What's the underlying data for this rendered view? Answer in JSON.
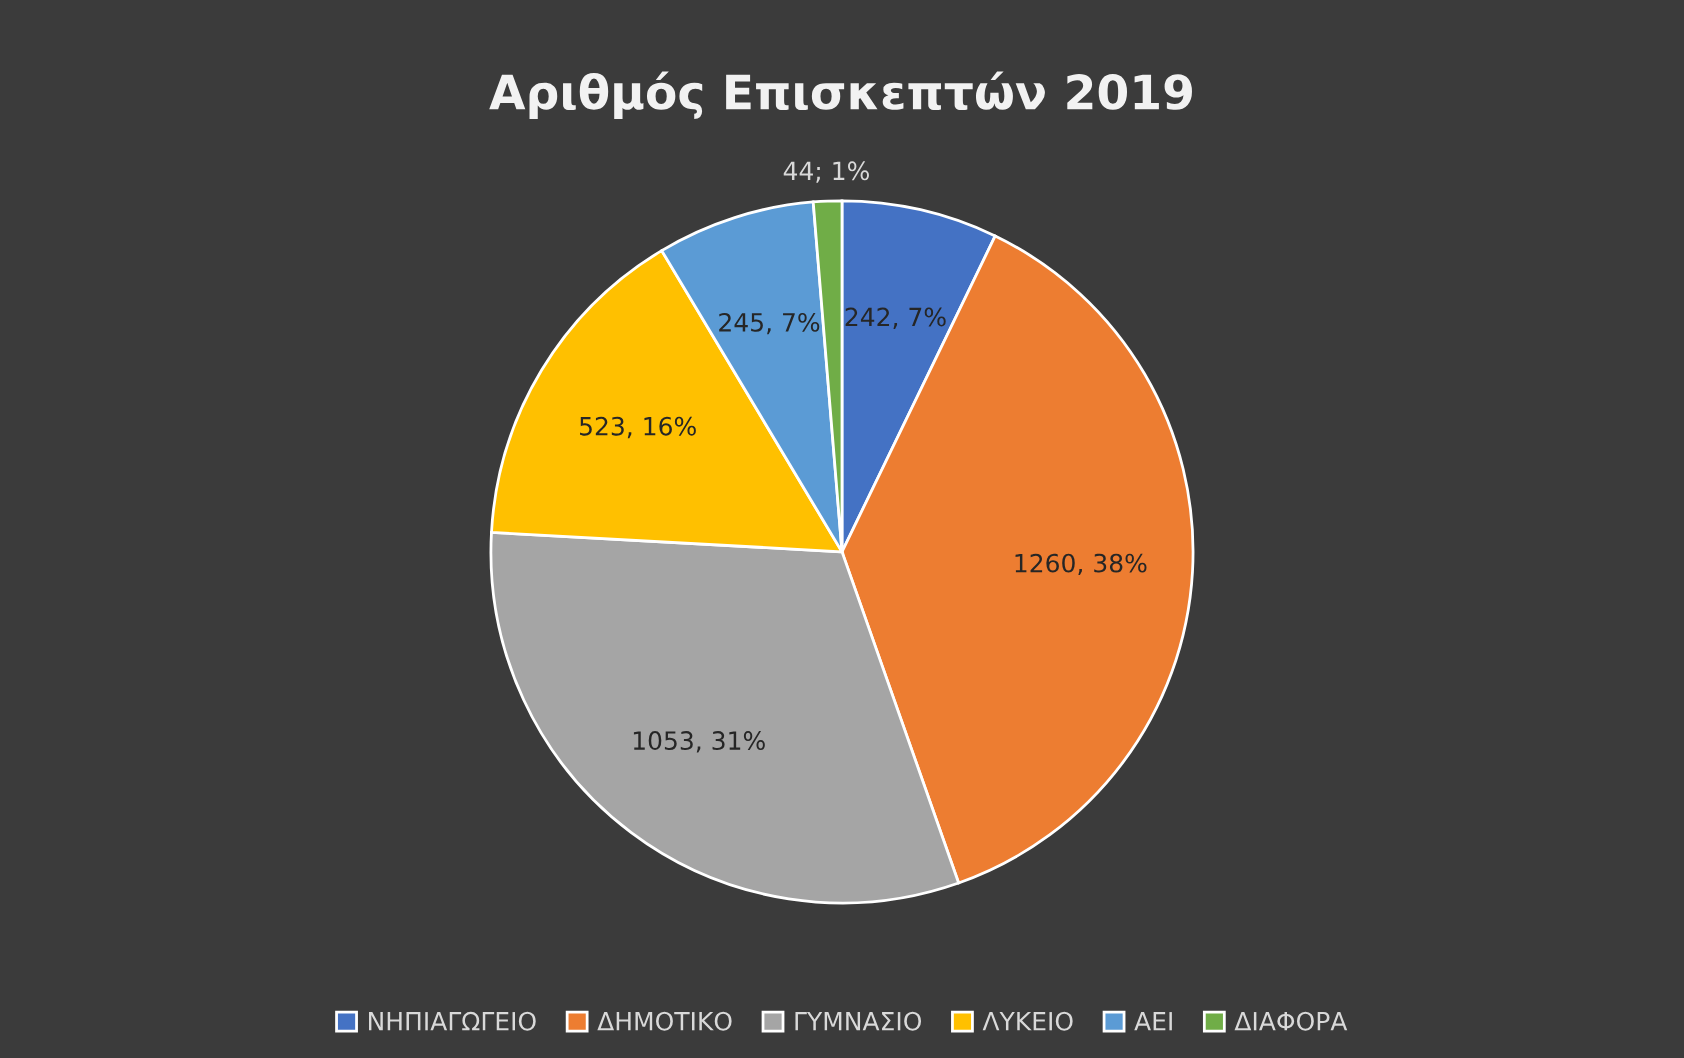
{
  "chart_data": {
    "type": "pie",
    "title": "Αριθμός Επισκεπτών 2019",
    "categories": [
      "ΝΗΠΙΑΓΩΓΕΙΟ",
      "ΔΗΜΟΤΙΚΟ",
      "ΓΥΜΝΑΣΙΟ",
      "ΛΥΚΕΙΟ",
      "ΑΕΙ",
      "ΔΙΑΦΟΡΑ"
    ],
    "values": [
      242,
      1260,
      1053,
      523,
      245,
      44
    ],
    "colors": [
      "#4472c4",
      "#ed7d31",
      "#a5a5a5",
      "#ffc000",
      "#5b9bd5",
      "#70ad47"
    ],
    "value_labels": [
      "242, 7%",
      "1260, 38%",
      "1053, 31%",
      "523, 16%",
      "245, 7%",
      "44; 1%"
    ],
    "legend": "bottom"
  }
}
